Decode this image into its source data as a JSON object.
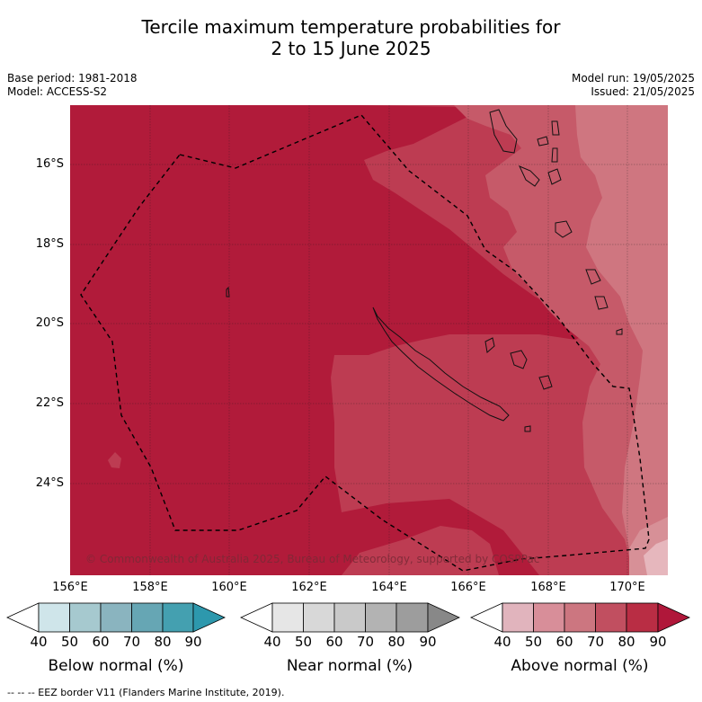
{
  "title_line1": "Tercile maximum temperature probabilities for",
  "title_line2": "2 to 15 June 2025",
  "base_period": "Base period: 1981-2018",
  "model": "Model: ACCESS-S2",
  "model_run": "Model run: 19/05/2025",
  "issued": "Issued: 21/05/2025",
  "map": {
    "lat_labels": [
      "16°S",
      "18°S",
      "20°S",
      "22°S",
      "24°S"
    ],
    "lon_labels": [
      "156°E",
      "158°E",
      "160°E",
      "162°E",
      "164°E",
      "166°E",
      "168°E",
      "170°E"
    ],
    "copyright": "© Commonwealth of Australia 2025, Bureau of Meteorology, supported by COSPPac"
  },
  "colorbars": [
    {
      "label": "Below normal (%)",
      "ticks": [
        "40",
        "50",
        "60",
        "70",
        "80",
        "90"
      ],
      "colors": [
        "#ffffff",
        "#cfe5ea",
        "#a6c9cf",
        "#8ab4bf",
        "#66a6b4",
        "#44a0b0",
        "#2d98ad"
      ]
    },
    {
      "label": "Near normal (%)",
      "ticks": [
        "40",
        "50",
        "60",
        "70",
        "80",
        "90"
      ],
      "colors": [
        "#ffffff",
        "#e6e6e6",
        "#d8d8d8",
        "#c9c9c9",
        "#b3b3b3",
        "#9d9d9d",
        "#888888"
      ]
    },
    {
      "label": "Above normal (%)",
      "ticks": [
        "40",
        "50",
        "60",
        "70",
        "80",
        "90"
      ],
      "colors": [
        "#ffffff",
        "#e1b4bd",
        "#d88e99",
        "#cc7680",
        "#c14f60",
        "#b92d44",
        "#b0173a"
      ]
    }
  ],
  "footnote": "--  --  -- EEZ border V11 (Flanders Marine Institute, 2019)."
}
